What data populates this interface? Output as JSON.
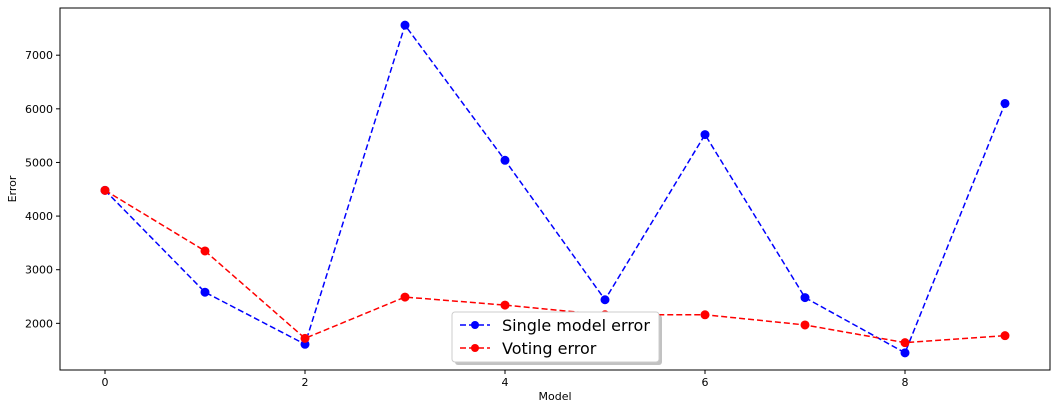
{
  "chart_data": {
    "type": "line",
    "title": "",
    "xlabel": "Model",
    "ylabel": "Error",
    "x": [
      0,
      1,
      2,
      3,
      4,
      5,
      6,
      7,
      8,
      9
    ],
    "xlim": [
      -0.45,
      9.45
    ],
    "ylim": [
      1130,
      7880
    ],
    "xticks": [
      0,
      2,
      4,
      6,
      8
    ],
    "yticks": [
      2000,
      3000,
      4000,
      5000,
      6000,
      7000
    ],
    "grid": false,
    "legend_position": "bottom-center",
    "series": [
      {
        "name": "Single model error",
        "color": "#0000ff",
        "linestyle": "dashed",
        "marker": "circle",
        "values": [
          4480,
          2580,
          1610,
          7560,
          5040,
          2440,
          5520,
          2480,
          1450,
          6100
        ]
      },
      {
        "name": "Voting error",
        "color": "#ff0000",
        "linestyle": "dashed",
        "marker": "circle",
        "values": [
          4480,
          3350,
          1720,
          2490,
          2340,
          2160,
          2160,
          1970,
          1640,
          1770
        ]
      }
    ]
  }
}
